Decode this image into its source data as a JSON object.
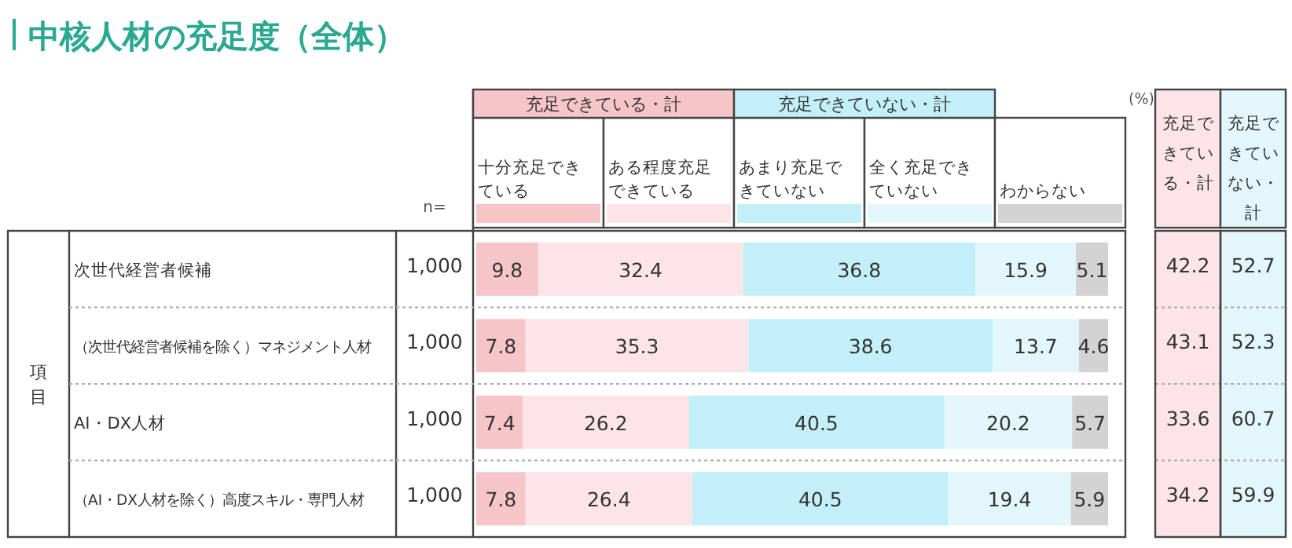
{
  "chart_data": [
    {
      "type": "bar",
      "title": "中核人材の充足度（全体）",
      "orientation": "horizontal",
      "stacked": true,
      "data_labels": true,
      "legend": "top",
      "xlim": [
        0,
        100
      ],
      "categories": [
        "次世代経営者候補",
        "（次世代経営者候補を除く）マネジメント人材",
        "AI・DX人材",
        "（AI・DX人材を除く）高度スキル・専門人材"
      ],
      "series": [
        {
          "name": "十分充足できている",
          "color": "#f6c5c8",
          "values": [
            9.8,
            7.8,
            7.4,
            7.8
          ]
        },
        {
          "name": "ある程度充足できている",
          "color": "#fde5e7",
          "values": [
            32.4,
            35.3,
            26.2,
            26.4
          ]
        },
        {
          "name": "あまり充足できていない",
          "color": "#c3eff9",
          "values": [
            36.8,
            38.6,
            40.5,
            40.5
          ]
        },
        {
          "name": "全く充足できていない",
          "color": "#e3f6fc",
          "values": [
            15.9,
            13.7,
            20.2,
            19.4
          ]
        },
        {
          "name": "わからない",
          "color": "#d3d3d3",
          "values": [
            5.1,
            4.6,
            5.7,
            5.9
          ]
        }
      ],
      "annotations": [
        "充足できている・計",
        "充足できていない・計",
        "(%)",
        "項目"
      ]
    },
    {
      "type": "heatmap",
      "tick_labels": "x",
      "categories": [
        "n="
      ],
      "y_categories": [
        null,
        null,
        null,
        null
      ],
      "cells": [
        [
          1000
        ],
        [
          1000
        ],
        [
          1000
        ],
        [
          1000
        ]
      ],
      "cell_labels": [
        [
          "1,000"
        ],
        [
          "1,000"
        ],
        [
          "1,000"
        ],
        [
          "1,000"
        ]
      ]
    },
    {
      "type": "heatmap",
      "tick_labels": "x",
      "categories": [
        "充足できている・計",
        "充足できていない・計"
      ],
      "y_categories": [
        null,
        null,
        null,
        null
      ],
      "colors": [
        "#fde5e7",
        "#e3f6fc"
      ],
      "cells": [
        [
          42.2,
          52.7
        ],
        [
          43.1,
          52.3
        ],
        [
          33.6,
          60.7
        ],
        [
          34.2,
          59.9
        ]
      ],
      "cell_labels": [
        [
          "42.2",
          "52.7"
        ],
        [
          "43.1",
          "52.3"
        ],
        [
          "33.6",
          "60.7"
        ],
        [
          "34.2",
          "59.9"
        ]
      ]
    }
  ]
}
